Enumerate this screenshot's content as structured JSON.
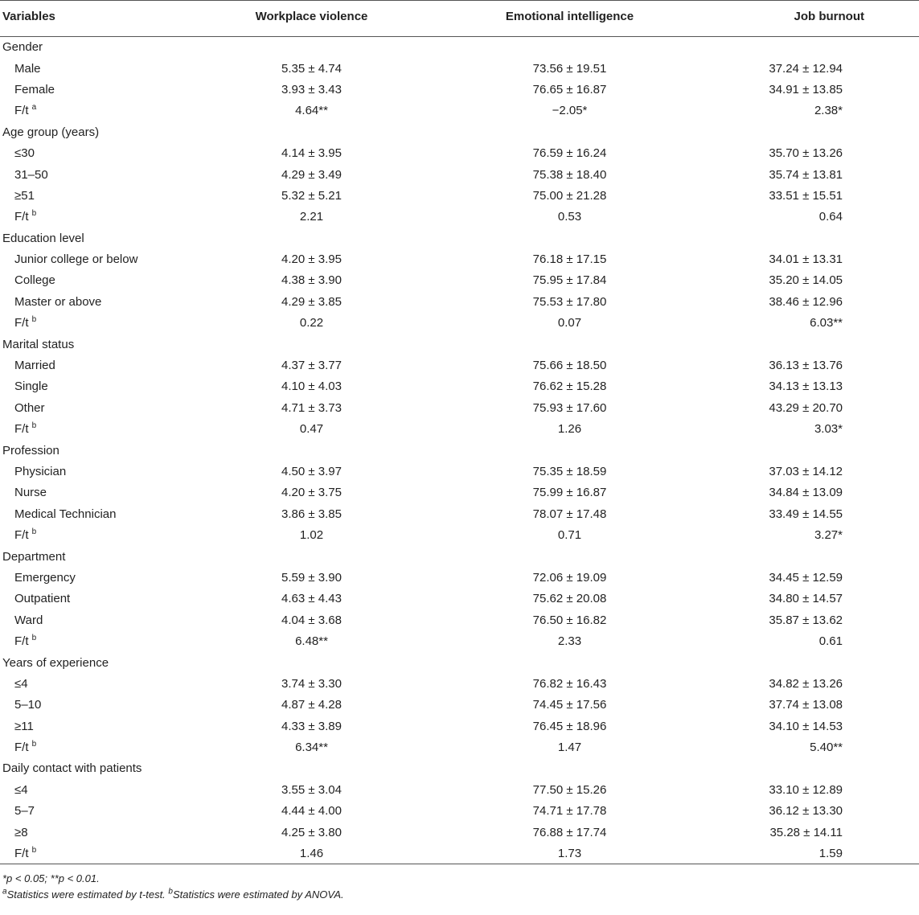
{
  "headers": {
    "variables": "Variables",
    "workplace_violence": "Workplace violence",
    "emotional_intelligence": "Emotional intelligence",
    "job_burnout": "Job burnout"
  },
  "rows": [
    {
      "type": "group",
      "label": "Gender"
    },
    {
      "type": "item",
      "label": "Male",
      "wv": "5.35 ± 4.74",
      "ei": "73.56 ± 19.51",
      "jb": "37.24 ± 12.94"
    },
    {
      "type": "item",
      "label": "Female",
      "wv": "3.93 ± 3.43",
      "ei": "76.65 ± 16.87",
      "jb": "34.91 ± 13.85"
    },
    {
      "type": "stat",
      "label": "F/t",
      "sup": "a",
      "wv": "4.64**",
      "ei": "−2.05*",
      "jb": "2.38*"
    },
    {
      "type": "group",
      "label": "Age group (years)"
    },
    {
      "type": "item",
      "label": "≤30",
      "wv": "4.14 ± 3.95",
      "ei": "76.59 ± 16.24",
      "jb": "35.70 ± 13.26"
    },
    {
      "type": "item",
      "label": "31–50",
      "wv": "4.29 ± 3.49",
      "ei": "75.38 ± 18.40",
      "jb": "35.74 ± 13.81"
    },
    {
      "type": "item",
      "label": "≥51",
      "wv": "5.32 ± 5.21",
      "ei": "75.00 ± 21.28",
      "jb": "33.51 ± 15.51"
    },
    {
      "type": "stat",
      "label": "F/t",
      "sup": "b",
      "wv": "2.21",
      "ei": "0.53",
      "jb": "0.64"
    },
    {
      "type": "group",
      "label": "Education level"
    },
    {
      "type": "item",
      "label": "Junior college or below",
      "wv": "4.20 ± 3.95",
      "ei": "76.18 ± 17.15",
      "jb": "34.01 ± 13.31"
    },
    {
      "type": "item",
      "label": "College",
      "wv": "4.38 ± 3.90",
      "ei": "75.95 ± 17.84",
      "jb": "35.20 ± 14.05"
    },
    {
      "type": "item",
      "label": "Master or above",
      "wv": "4.29 ± 3.85",
      "ei": "75.53 ± 17.80",
      "jb": "38.46 ± 12.96"
    },
    {
      "type": "stat",
      "label": "F/t",
      "sup": "b",
      "wv": "0.22",
      "ei": "0.07",
      "jb": "6.03**"
    },
    {
      "type": "group",
      "label": "Marital status"
    },
    {
      "type": "item",
      "label": "Married",
      "wv": "4.37 ± 3.77",
      "ei": "75.66 ± 18.50",
      "jb": "36.13 ± 13.76"
    },
    {
      "type": "item",
      "label": "Single",
      "wv": "4.10 ± 4.03",
      "ei": "76.62 ± 15.28",
      "jb": "34.13 ± 13.13"
    },
    {
      "type": "item",
      "label": "Other",
      "wv": "4.71 ± 3.73",
      "ei": "75.93 ± 17.60",
      "jb": "43.29 ± 20.70"
    },
    {
      "type": "stat",
      "label": "F/t",
      "sup": "b",
      "wv": "0.47",
      "ei": "1.26",
      "jb": "3.03*"
    },
    {
      "type": "group",
      "label": "Profession"
    },
    {
      "type": "item",
      "label": "Physician",
      "wv": "4.50 ± 3.97",
      "ei": "75.35 ± 18.59",
      "jb": "37.03 ± 14.12"
    },
    {
      "type": "item",
      "label": "Nurse",
      "wv": "4.20 ± 3.75",
      "ei": "75.99 ± 16.87",
      "jb": "34.84 ± 13.09"
    },
    {
      "type": "item",
      "label": "Medical Technician",
      "wv": "3.86 ± 3.85",
      "ei": "78.07 ± 17.48",
      "jb": "33.49 ± 14.55"
    },
    {
      "type": "stat",
      "label": "F/t",
      "sup": "b",
      "wv": "1.02",
      "ei": "0.71",
      "jb": "3.27*"
    },
    {
      "type": "group",
      "label": "Department"
    },
    {
      "type": "item",
      "label": "Emergency",
      "wv": "5.59 ± 3.90",
      "ei": "72.06 ± 19.09",
      "jb": "34.45 ± 12.59"
    },
    {
      "type": "item",
      "label": "Outpatient",
      "wv": "4.63 ± 4.43",
      "ei": "75.62 ± 20.08",
      "jb": "34.80 ± 14.57"
    },
    {
      "type": "item",
      "label": "Ward",
      "wv": "4.04 ± 3.68",
      "ei": "76.50 ± 16.82",
      "jb": "35.87 ± 13.62"
    },
    {
      "type": "stat",
      "label": "F/t",
      "sup": "b",
      "wv": "6.48**",
      "ei": "2.33",
      "jb": "0.61"
    },
    {
      "type": "group",
      "label": "Years of experience"
    },
    {
      "type": "item",
      "label": "≤4",
      "wv": "3.74 ± 3.30",
      "ei": "76.82 ± 16.43",
      "jb": "34.82 ± 13.26"
    },
    {
      "type": "item",
      "label": "5–10",
      "wv": "4.87 ± 4.28",
      "ei": "74.45 ± 17.56",
      "jb": "37.74 ± 13.08"
    },
    {
      "type": "item",
      "label": "≥11",
      "wv": "4.33 ± 3.89",
      "ei": "76.45 ± 18.96",
      "jb": "34.10 ± 14.53"
    },
    {
      "type": "stat",
      "label": "F/t",
      "sup": "b",
      "wv": "6.34**",
      "ei": "1.47",
      "jb": "5.40**"
    },
    {
      "type": "group",
      "label": "Daily contact with patients"
    },
    {
      "type": "item",
      "label": "≤4",
      "wv": "3.55 ± 3.04",
      "ei": "77.50 ± 15.26",
      "jb": "33.10 ± 12.89"
    },
    {
      "type": "item",
      "label": "5–7",
      "wv": "4.44 ± 4.00",
      "ei": "74.71 ± 17.78",
      "jb": "36.12 ± 13.30"
    },
    {
      "type": "item",
      "label": "≥8",
      "wv": "4.25 ± 3.80",
      "ei": "76.88 ± 17.74",
      "jb": "35.28 ± 14.11"
    },
    {
      "type": "stat",
      "label": "F/t",
      "sup": "b",
      "wv": "1.46",
      "ei": "1.73",
      "jb": "1.59"
    }
  ],
  "footnotes": {
    "significance": "*p < 0.05; **p < 0.01.",
    "note_a_marker": "a",
    "note_a": "Statistics were estimated by t-test.",
    "note_b_marker": "b",
    "note_b": "Statistics were estimated by ANOVA."
  }
}
